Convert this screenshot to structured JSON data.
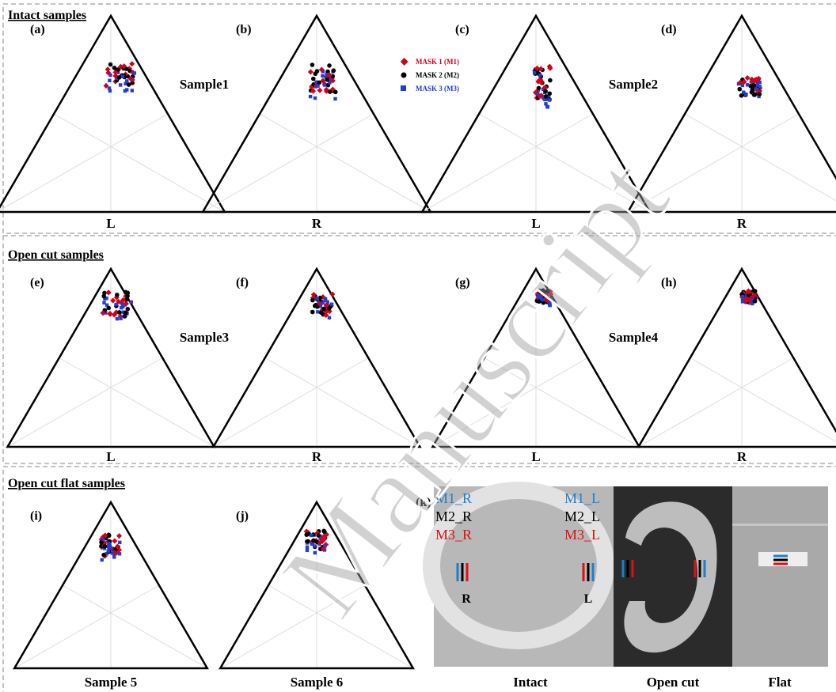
{
  "sections": [
    {
      "title": "Intact samples",
      "samples": [
        "Sample1",
        "Sample2"
      ],
      "panels": [
        {
          "label": "(a)",
          "axis": "L"
        },
        {
          "label": "(b)",
          "axis": "R"
        },
        {
          "label": "(c)",
          "axis": "L"
        },
        {
          "label": "(d)",
          "axis": "R"
        }
      ]
    },
    {
      "title": "Open cut samples",
      "samples": [
        "Sample3",
        "Sample4"
      ],
      "panels": [
        {
          "label": "(e)",
          "axis": "L"
        },
        {
          "label": "(f)",
          "axis": "R"
        },
        {
          "label": "(g)",
          "axis": "L"
        },
        {
          "label": "(h)",
          "axis": "R"
        }
      ]
    },
    {
      "title": "Open cut flat samples",
      "panels": [
        {
          "label": "(i)",
          "axis": "Sample 5"
        },
        {
          "label": "(j)",
          "axis": "Sample 6"
        }
      ]
    }
  ],
  "legend": [
    {
      "label": "MASK 1 (M1)",
      "color": "#d0021b"
    },
    {
      "label": "MASK 2 (M2)",
      "color": "#000000"
    },
    {
      "label": "MASK 3 (M3)",
      "color": "#1f3fd0"
    }
  ],
  "image_panel": {
    "label": "(k)",
    "left_labels": [
      "M1_R",
      "M2_R",
      "M3_R"
    ],
    "right_labels": [
      "M1_L",
      "M2_L",
      "M3_L"
    ],
    "marker_left": "R",
    "marker_right": "L",
    "captions": [
      "Intact",
      "Open cut",
      "Flat"
    ]
  },
  "watermark": "Manuscript"
}
